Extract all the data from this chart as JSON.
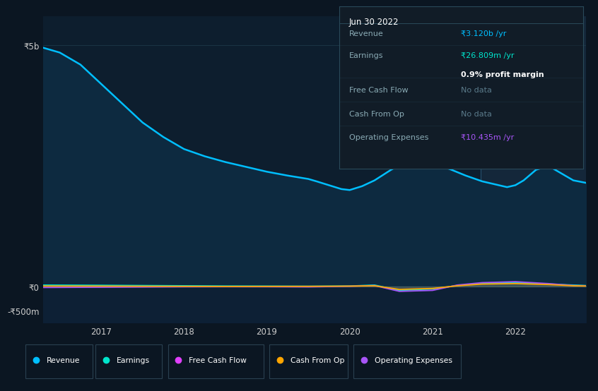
{
  "bg_color": "#0b1622",
  "plot_bg": "#0d1e2e",
  "highlight_bg": "#14273a",
  "yticks_labels": [
    "₹5b",
    "₹0",
    "-₹500m"
  ],
  "ytick_vals": [
    5000000000,
    0,
    -500000000
  ],
  "xtick_labels": [
    "2017",
    "2018",
    "2019",
    "2020",
    "2021",
    "2022"
  ],
  "ymin": -750000000,
  "ymax": 5600000000,
  "xmin": 2016.3,
  "xmax": 2022.85,
  "revenue_color": "#00bfff",
  "earnings_color": "#00e5cc",
  "fcf_color": "#e040fb",
  "cashfromop_color": "#ffa500",
  "opex_color": "#a855f7",
  "legend_labels": [
    "Revenue",
    "Earnings",
    "Free Cash Flow",
    "Cash From Op",
    "Operating Expenses"
  ],
  "legend_colors": [
    "#00bfff",
    "#00e5cc",
    "#e040fb",
    "#ffa500",
    "#a855f7"
  ],
  "tooltip_date": "Jun 30 2022",
  "tooltip_revenue_label": "Revenue",
  "tooltip_revenue_val": "₹3.120b /yr",
  "tooltip_earnings_label": "Earnings",
  "tooltip_earnings_val": "₹26.809m /yr",
  "tooltip_margin": "0.9% profit margin",
  "tooltip_fcf_label": "Free Cash Flow",
  "tooltip_fcf_val": "No data",
  "tooltip_cashop_label": "Cash From Op",
  "tooltip_cashop_val": "No data",
  "tooltip_opex_label": "Operating Expenses",
  "tooltip_opex_val": "₹10.435m /yr",
  "highlight_x_start": 2021.58,
  "revenue_x": [
    2016.3,
    2016.5,
    2016.75,
    2017.0,
    2017.25,
    2017.5,
    2017.75,
    2018.0,
    2018.25,
    2018.5,
    2018.75,
    2019.0,
    2019.25,
    2019.5,
    2019.6,
    2019.75,
    2019.9,
    2020.0,
    2020.15,
    2020.3,
    2020.5,
    2020.65,
    2020.8,
    2021.0,
    2021.2,
    2021.4,
    2021.6,
    2021.75,
    2021.9,
    2022.0,
    2022.1,
    2022.25,
    2022.4,
    2022.55,
    2022.7,
    2022.85
  ],
  "revenue_y": [
    4950000000,
    4850000000,
    4600000000,
    4200000000,
    3800000000,
    3400000000,
    3100000000,
    2850000000,
    2700000000,
    2580000000,
    2480000000,
    2380000000,
    2300000000,
    2230000000,
    2180000000,
    2100000000,
    2020000000,
    2000000000,
    2080000000,
    2200000000,
    2420000000,
    2560000000,
    2580000000,
    2520000000,
    2440000000,
    2300000000,
    2180000000,
    2120000000,
    2060000000,
    2100000000,
    2200000000,
    2420000000,
    2500000000,
    2350000000,
    2200000000,
    2150000000
  ],
  "earnings_x": [
    2016.3,
    2017.0,
    2017.5,
    2018.0,
    2018.5,
    2019.0,
    2019.5,
    2020.0,
    2020.3,
    2020.6,
    2021.0,
    2021.3,
    2021.6,
    2022.0,
    2022.4,
    2022.7,
    2022.85
  ],
  "earnings_y": [
    30000000,
    25000000,
    20000000,
    15000000,
    10000000,
    8000000,
    5000000,
    10000000,
    30000000,
    -80000000,
    -50000000,
    20000000,
    60000000,
    80000000,
    50000000,
    30000000,
    20000000
  ],
  "opex_x": [
    2016.3,
    2017.0,
    2017.5,
    2018.0,
    2018.5,
    2019.0,
    2019.5,
    2020.0,
    2020.3,
    2020.6,
    2021.0,
    2021.3,
    2021.6,
    2022.0,
    2022.4,
    2022.7,
    2022.85
  ],
  "opex_y": [
    -20000000,
    -15000000,
    -10000000,
    -5000000,
    -3000000,
    -4000000,
    -8000000,
    5000000,
    20000000,
    -100000000,
    -80000000,
    30000000,
    80000000,
    100000000,
    60000000,
    20000000,
    15000000
  ],
  "cashop_x": [
    2016.3,
    2017.0,
    2017.5,
    2018.0,
    2018.5,
    2019.0,
    2019.5,
    2020.0,
    2020.3,
    2020.6,
    2021.0,
    2021.3,
    2021.6,
    2022.0,
    2022.4,
    2022.7,
    2022.85
  ],
  "cashop_y": [
    10000000,
    8000000,
    5000000,
    3000000,
    1000000,
    2000000,
    3000000,
    8000000,
    15000000,
    -60000000,
    -40000000,
    15000000,
    50000000,
    60000000,
    40000000,
    15000000,
    10000000
  ]
}
